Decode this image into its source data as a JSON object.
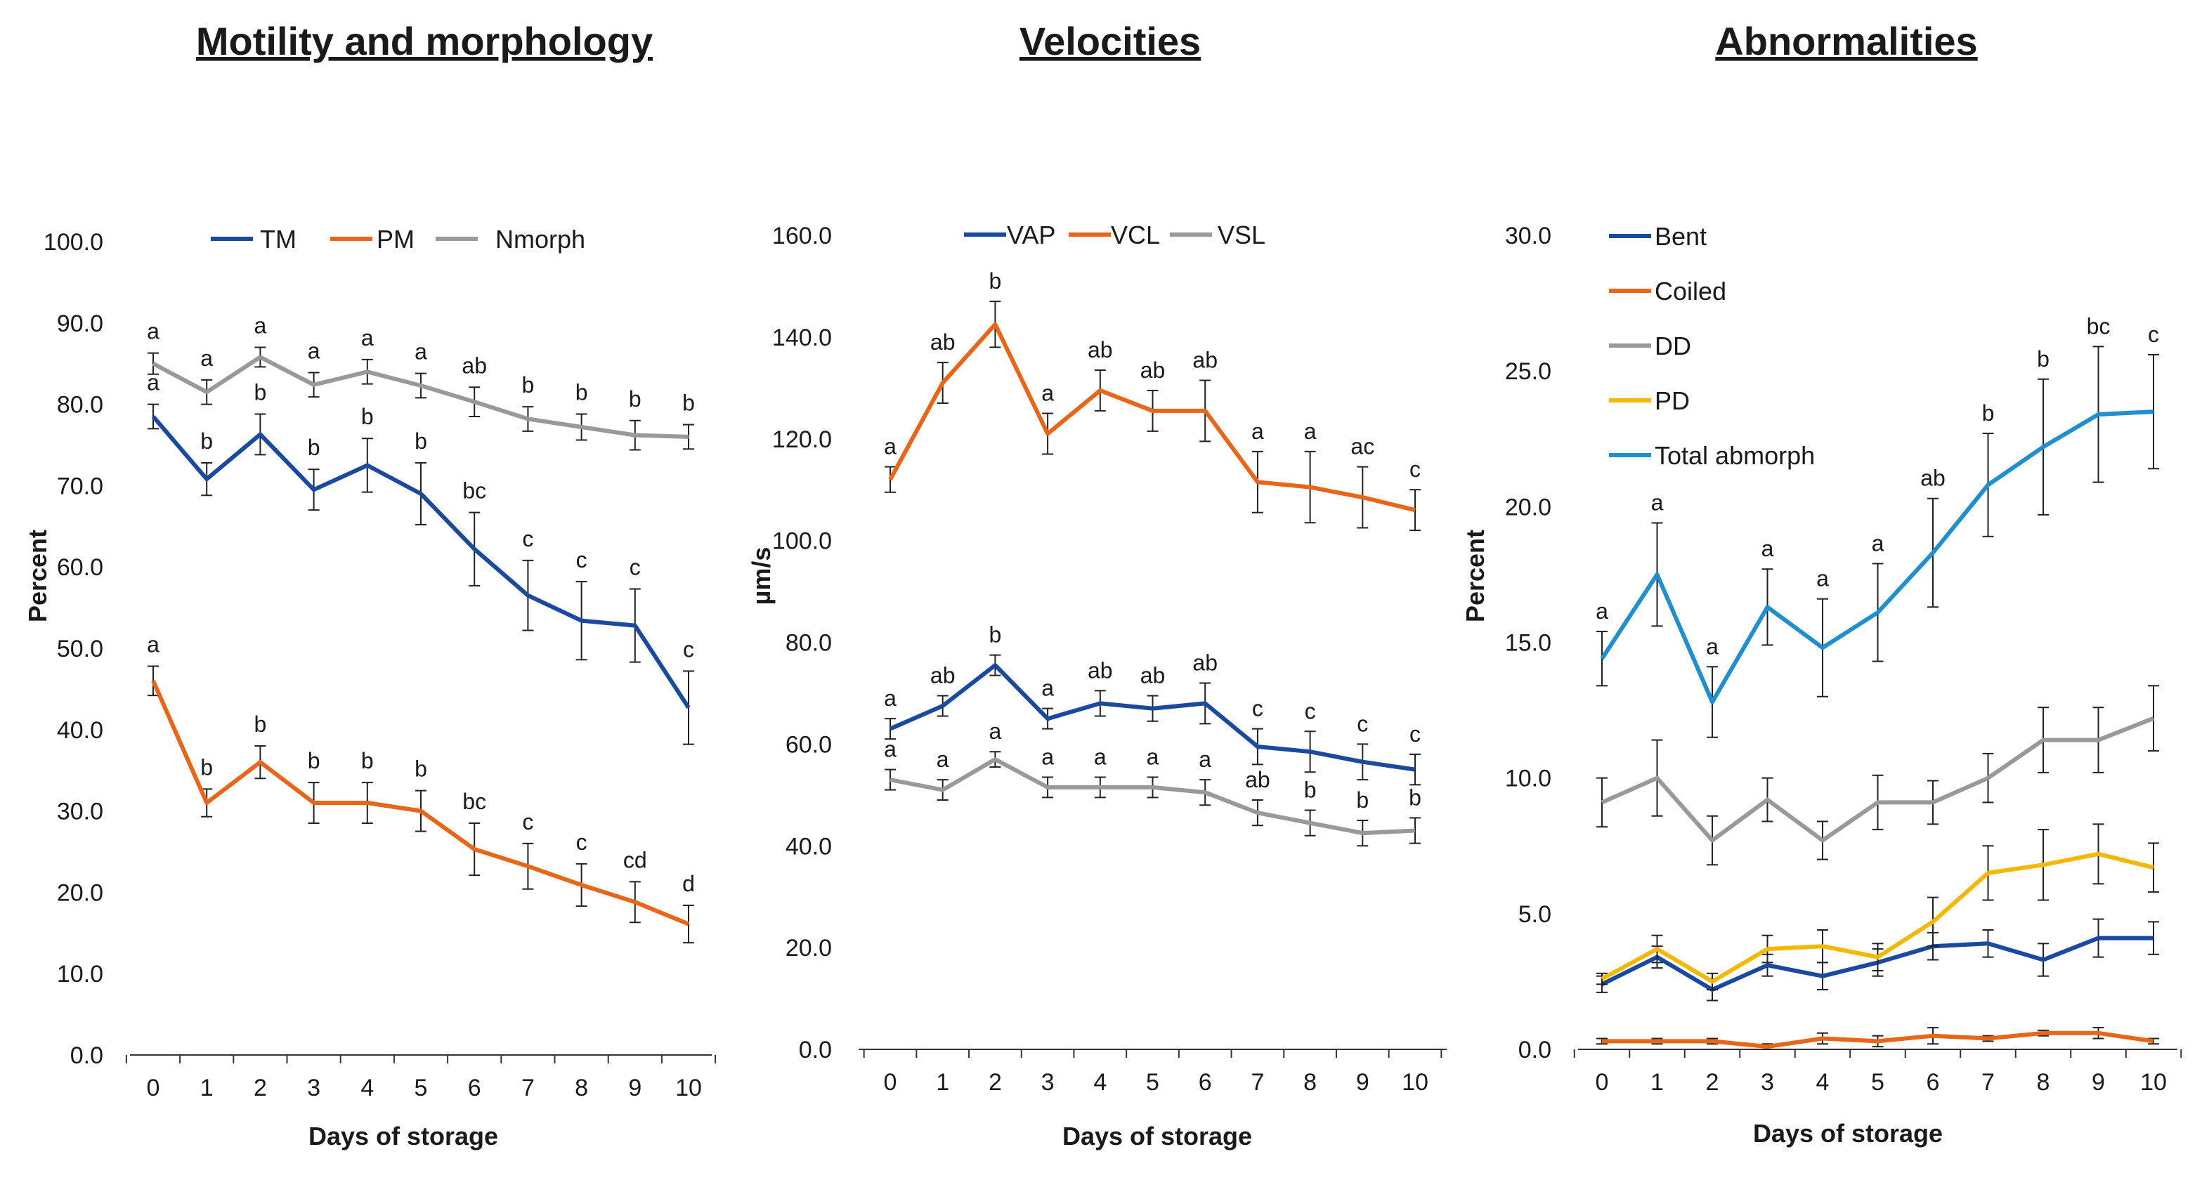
{
  "chart_data": [
    {
      "type": "line",
      "title": "Motility and morphology",
      "xlabel": "Days of storage",
      "ylabel": "Percent",
      "ylim": [
        0,
        100
      ],
      "ytick_step": 10,
      "ytick_labels": [
        "0.0",
        "10.0",
        "20.0",
        "30.0",
        "40.0",
        "50.0",
        "60.0",
        "70.0",
        "80.0",
        "90.0",
        "100.0"
      ],
      "legend_position": "top",
      "x": [
        0,
        1,
        2,
        3,
        4,
        5,
        6,
        7,
        8,
        9,
        10
      ],
      "series": [
        {
          "name": "TM",
          "color": "#1a4aa0",
          "values": [
            78.5,
            70.8,
            76.3,
            69.5,
            72.5,
            69.0,
            62.2,
            56.5,
            53.4,
            52.8,
            42.7
          ],
          "errors": [
            1.5,
            2.0,
            2.5,
            2.5,
            3.3,
            3.8,
            4.5,
            4.3,
            4.8,
            4.5,
            4.5
          ],
          "letters": [
            "a",
            "b",
            "b",
            "b",
            "b",
            "b",
            "bc",
            "c",
            "c",
            "c",
            "c"
          ]
        },
        {
          "name": "PM",
          "color": "#e8661a",
          "values": [
            46.0,
            31.0,
            36.0,
            31.0,
            31.0,
            30.0,
            25.3,
            23.2,
            20.9,
            18.8,
            16.1
          ],
          "errors": [
            1.8,
            1.7,
            2.0,
            2.5,
            2.5,
            2.5,
            3.2,
            2.8,
            2.6,
            2.5,
            2.3
          ],
          "letters": [
            "a",
            "b",
            "b",
            "b",
            "b",
            "b",
            "bc",
            "c",
            "c",
            "cd",
            "d"
          ]
        },
        {
          "name": "Nmorph",
          "color": "#999999",
          "values": [
            85.0,
            81.5,
            85.8,
            82.4,
            84.0,
            82.3,
            80.3,
            78.2,
            77.2,
            76.2,
            76.0
          ],
          "errors": [
            1.3,
            1.5,
            1.2,
            1.5,
            1.5,
            1.5,
            1.8,
            1.5,
            1.6,
            1.8,
            1.5
          ],
          "letters": [
            "a",
            "a",
            "a",
            "a",
            "a",
            "a",
            "ab",
            "b",
            "b",
            "b",
            "b"
          ]
        }
      ]
    },
    {
      "type": "line",
      "title": "Velocities",
      "xlabel": "Days of storage",
      "ylabel": "µm/s",
      "ylim": [
        0,
        160
      ],
      "ytick_step": 20,
      "ytick_labels": [
        "0.0",
        "20.0",
        "40.0",
        "60.0",
        "80.0",
        "100.0",
        "120.0",
        "140.0",
        "160.0"
      ],
      "legend_position": "top",
      "x": [
        0,
        1,
        2,
        3,
        4,
        5,
        6,
        7,
        8,
        9,
        10
      ],
      "series": [
        {
          "name": "VAP",
          "color": "#1a4aa0",
          "values": [
            63.0,
            67.5,
            75.5,
            65.0,
            68.0,
            67.0,
            68.0,
            59.5,
            58.5,
            56.5,
            55.0
          ],
          "errors": [
            2.0,
            2.0,
            2.0,
            2.0,
            2.5,
            2.5,
            4.0,
            3.5,
            4.0,
            3.5,
            3.0
          ],
          "letters": [
            "a",
            "ab",
            "b",
            "a",
            "ab",
            "ab",
            "ab",
            "c",
            "c",
            "c",
            "c"
          ]
        },
        {
          "name": "VCL",
          "color": "#e8661a",
          "values": [
            112.0,
            131.0,
            142.5,
            121.0,
            129.5,
            125.5,
            125.5,
            111.5,
            110.5,
            108.5,
            106.0
          ],
          "errors": [
            2.5,
            4.0,
            4.5,
            4.0,
            4.0,
            4.0,
            6.0,
            6.0,
            7.0,
            6.0,
            4.0
          ],
          "letters": [
            "a",
            "ab",
            "b",
            "a",
            "ab",
            "ab",
            "ab",
            "a",
            "a",
            "ac",
            "c"
          ]
        },
        {
          "name": "VSL",
          "color": "#999999",
          "values": [
            53.0,
            51.0,
            57.0,
            51.5,
            51.5,
            51.5,
            50.5,
            46.5,
            44.5,
            42.5,
            43.0
          ],
          "errors": [
            2.0,
            2.0,
            1.5,
            2.0,
            2.0,
            2.0,
            2.5,
            2.5,
            2.5,
            2.5,
            2.5
          ],
          "letters": [
            "a",
            "a",
            "a",
            "a",
            "a",
            "a",
            "a",
            "ab",
            "b",
            "b",
            "b"
          ]
        }
      ]
    },
    {
      "type": "line",
      "title": "Abnormalities",
      "xlabel": "Days of storage",
      "ylabel": "Percent",
      "ylim": [
        0,
        30
      ],
      "ytick_step": 5,
      "ytick_labels": [
        "0.0",
        "5.0",
        "10.0",
        "15.0",
        "20.0",
        "25.0",
        "30.0"
      ],
      "legend_position": "top-left",
      "x": [
        0,
        1,
        2,
        3,
        4,
        5,
        6,
        7,
        8,
        9,
        10
      ],
      "series": [
        {
          "name": "Bent",
          "color": "#1a4aa0",
          "values": [
            2.4,
            3.4,
            2.2,
            3.1,
            2.7,
            3.2,
            3.8,
            3.9,
            3.3,
            4.1,
            4.1
          ],
          "errors": [
            0.3,
            0.4,
            0.4,
            0.4,
            0.5,
            0.5,
            0.5,
            0.5,
            0.6,
            0.7,
            0.6
          ],
          "letters": []
        },
        {
          "name": "Coiled",
          "color": "#e8661a",
          "values": [
            0.3,
            0.3,
            0.3,
            0.1,
            0.4,
            0.3,
            0.5,
            0.4,
            0.6,
            0.6,
            0.3
          ],
          "errors": [
            0.1,
            0.1,
            0.1,
            0.1,
            0.2,
            0.2,
            0.3,
            0.1,
            0.1,
            0.2,
            0.1
          ],
          "letters": []
        },
        {
          "name": "DD",
          "color": "#999999",
          "values": [
            9.1,
            10.0,
            7.7,
            9.2,
            7.7,
            9.1,
            9.1,
            10.0,
            11.4,
            11.4,
            12.2
          ],
          "errors": [
            0.9,
            1.4,
            0.9,
            0.8,
            0.7,
            1.0,
            0.8,
            0.9,
            1.2,
            1.2,
            1.2
          ],
          "letters": []
        },
        {
          "name": "PD",
          "color": "#f5b800",
          "values": [
            2.6,
            3.7,
            2.5,
            3.7,
            3.8,
            3.4,
            4.7,
            6.5,
            6.8,
            7.2,
            6.7
          ],
          "errors": [
            0.2,
            0.5,
            0.3,
            0.5,
            0.6,
            0.5,
            0.9,
            1.0,
            1.3,
            1.1,
            0.9
          ],
          "letters": []
        },
        {
          "name": "Total abmorph",
          "color": "#1f8fd0",
          "values": [
            14.4,
            17.5,
            12.8,
            16.3,
            14.8,
            16.1,
            18.3,
            20.8,
            22.2,
            23.4,
            23.5
          ],
          "errors": [
            1.0,
            1.9,
            1.3,
            1.4,
            1.8,
            1.8,
            2.0,
            1.9,
            2.5,
            2.5,
            2.1
          ],
          "letters": [
            "a",
            "a",
            "a",
            "a",
            "a",
            "a",
            "ab",
            "b",
            "b",
            "bc",
            "c"
          ]
        }
      ]
    }
  ]
}
